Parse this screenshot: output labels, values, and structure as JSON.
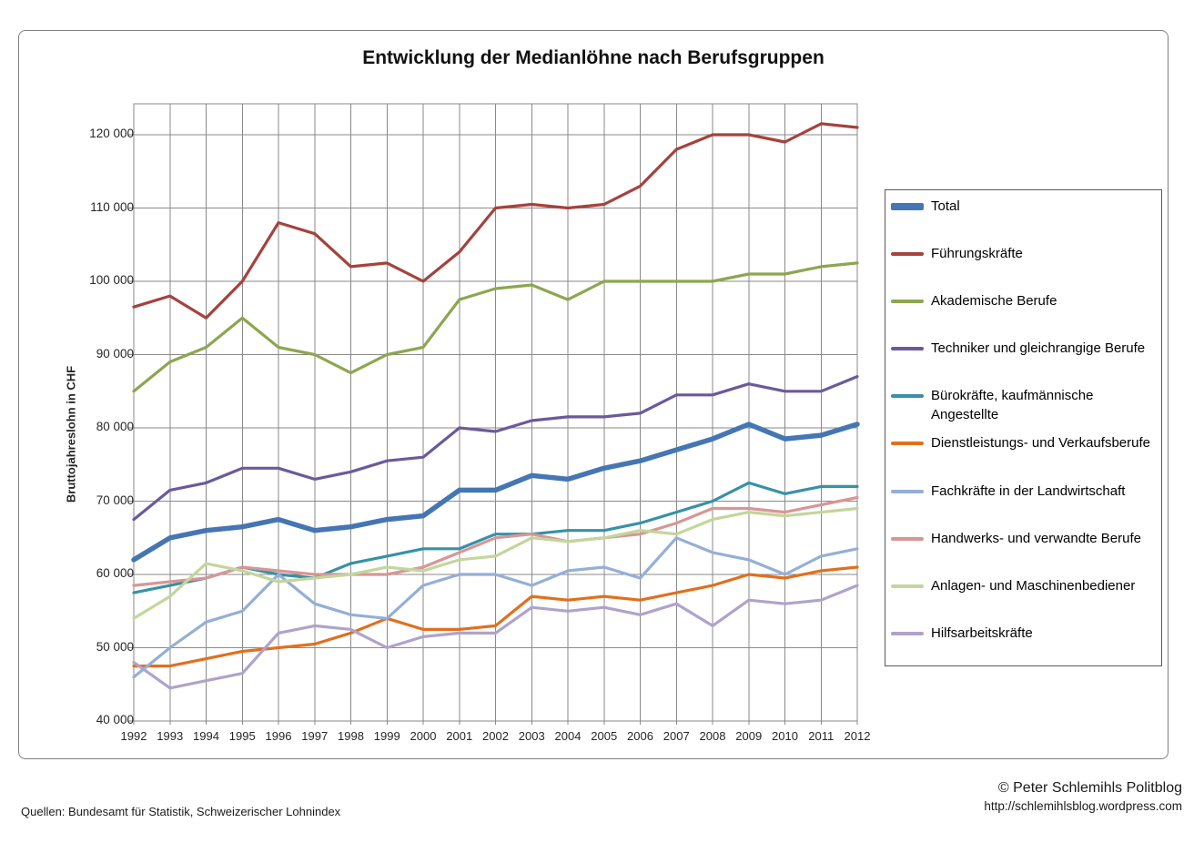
{
  "title": "Entwicklung der Medianlöhne nach Berufsgruppen",
  "footer": {
    "source": "Quellen: Bundesamt für Statistik, Schweizerischer Lohnindex",
    "copyright": "© Peter Schlemihls Politblog",
    "website": "http://schlemihlsblog.wordpress.com"
  },
  "chart_data": {
    "type": "line",
    "title": "Entwicklung der Medianlöhne nach Berufsgruppen",
    "xlabel": "",
    "ylabel": "Bruttojahreslohn in CHF",
    "x": [
      1992,
      1993,
      1994,
      1995,
      1996,
      1997,
      1998,
      1999,
      2000,
      2001,
      2002,
      2003,
      2004,
      2005,
      2006,
      2007,
      2008,
      2009,
      2010,
      2011,
      2012
    ],
    "ylim": [
      40000,
      124200
    ],
    "grid": true,
    "legend_position": "right",
    "grid_color": "#8a8a8a",
    "y_ticks": [
      {
        "label": "40 000",
        "value": 40000
      },
      {
        "label": "50 000",
        "value": 50000
      },
      {
        "label": "60 000",
        "value": 60000
      },
      {
        "label": "70 000",
        "value": 70000
      },
      {
        "label": "80 000",
        "value": 80000
      },
      {
        "label": "90 000",
        "value": 90000
      },
      {
        "label": "100 000",
        "value": 100000
      },
      {
        "label": "110 000",
        "value": 110000
      },
      {
        "label": "120 000",
        "value": 120000
      }
    ],
    "series": [
      {
        "name": "Total",
        "color": "#4576B4",
        "width": 5.5,
        "values": [
          62000,
          65000,
          66000,
          66500,
          67500,
          66000,
          66500,
          67500,
          68000,
          71500,
          71500,
          73500,
          73000,
          74500,
          75500,
          77000,
          78500,
          80500,
          78500,
          79000,
          80500
        ]
      },
      {
        "name": "Führungskräfte",
        "color": "#A5423D",
        "width": 3.2,
        "values": [
          96500,
          98000,
          95000,
          100000,
          108000,
          106500,
          102000,
          102500,
          100000,
          104000,
          110000,
          110500,
          110000,
          110500,
          113000,
          118000,
          120000,
          120000,
          119000,
          121500,
          121000
        ]
      },
      {
        "name": "Akademische Berufe",
        "color": "#8DA64F",
        "width": 3.2,
        "values": [
          85000,
          89000,
          91000,
          95000,
          91000,
          90000,
          87500,
          90000,
          91000,
          97500,
          99000,
          99500,
          97500,
          100000,
          100000,
          100000,
          100000,
          101000,
          101000,
          102000,
          102500
        ]
      },
      {
        "name": "Techniker und gleichrangige Berufe",
        "color": "#6A5A9B",
        "width": 3.2,
        "values": [
          67500,
          71500,
          72500,
          74500,
          74500,
          73000,
          74000,
          75500,
          76000,
          80000,
          79500,
          81000,
          81500,
          81500,
          82000,
          84500,
          84500,
          86000,
          85000,
          85000,
          87000
        ]
      },
      {
        "name": "Bürokräfte, kaufmännische Angestellte",
        "color": "#3791A6",
        "width": 3.2,
        "values": [
          57500,
          58500,
          59500,
          61000,
          60000,
          59500,
          61500,
          62500,
          63500,
          63500,
          65500,
          65500,
          66000,
          66000,
          67000,
          68500,
          70000,
          72500,
          71000,
          72000,
          72000
        ]
      },
      {
        "name": "Dienstleistungs- und Verkaufsberufe",
        "color": "#E0701E",
        "width": 3.2,
        "values": [
          47500,
          47500,
          48500,
          49500,
          50000,
          50500,
          52000,
          54000,
          52500,
          52500,
          53000,
          57000,
          56500,
          57000,
          56500,
          57500,
          58500,
          60000,
          59500,
          60500,
          61000
        ]
      },
      {
        "name": "Fachkräfte in der Landwirtschaft",
        "color": "#94AFD7",
        "width": 3.2,
        "values": [
          46000,
          50000,
          53500,
          55000,
          60000,
          56000,
          54500,
          54000,
          58500,
          60000,
          60000,
          58500,
          60500,
          61000,
          59500,
          65000,
          63000,
          62000,
          60000,
          62500,
          63500
        ]
      },
      {
        "name": "Handwerks- und verwandte Berufe",
        "color": "#D89695",
        "width": 3.2,
        "values": [
          58500,
          59000,
          59500,
          61000,
          60500,
          60000,
          60000,
          60000,
          61000,
          63000,
          65000,
          65500,
          64500,
          65000,
          65500,
          67000,
          69000,
          69000,
          68500,
          69500,
          70500
        ]
      },
      {
        "name": "Anlagen- und Maschinenbediener",
        "color": "#C3D69B",
        "width": 3.2,
        "values": [
          54000,
          57000,
          61500,
          60500,
          59000,
          59500,
          60000,
          61000,
          60500,
          62000,
          62500,
          65000,
          64500,
          65000,
          66000,
          65500,
          67500,
          68500,
          68000,
          68500,
          69000
        ]
      },
      {
        "name": "Hilfsarbeitskräfte",
        "color": "#AFA3CB",
        "width": 3.2,
        "values": [
          48000,
          44500,
          45500,
          46500,
          52000,
          53000,
          52500,
          50000,
          51500,
          52000,
          52000,
          55500,
          55000,
          55500,
          54500,
          56000,
          53000,
          56500,
          56000,
          56500,
          58500
        ]
      }
    ]
  }
}
